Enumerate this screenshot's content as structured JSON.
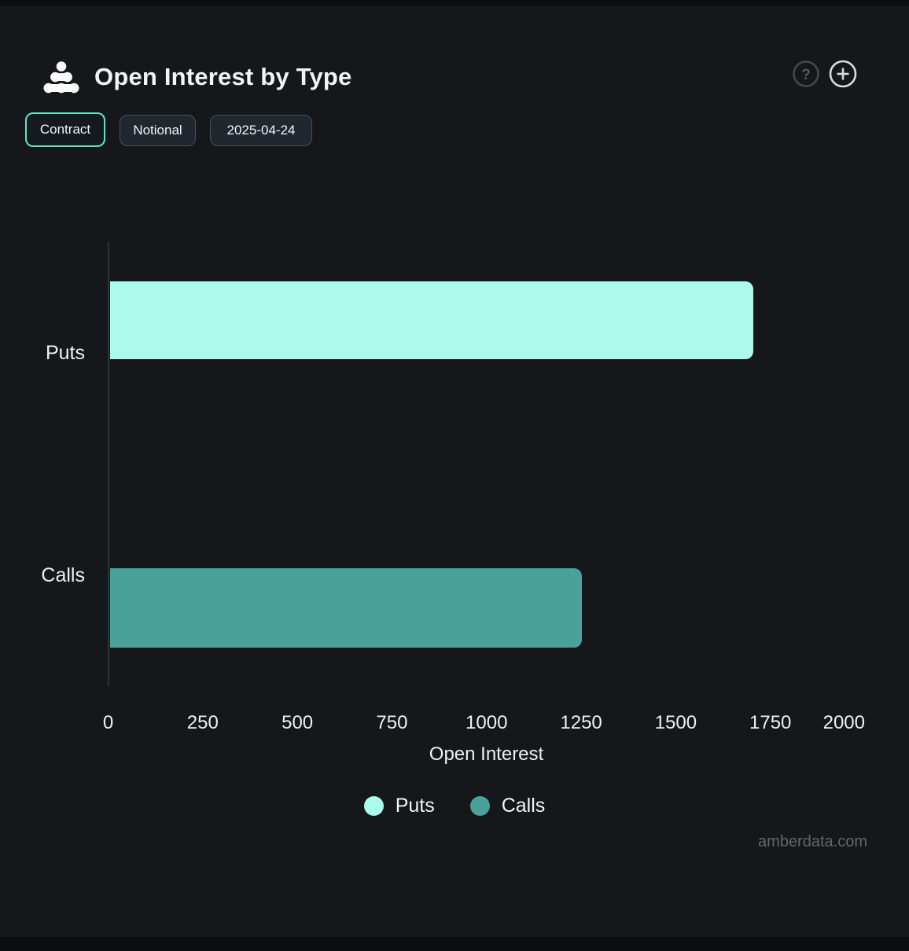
{
  "header": {
    "title": "Open Interest by Type",
    "logo": "amberdata-dots-logo",
    "actions": [
      {
        "name": "help",
        "icon": "question-circle-icon"
      },
      {
        "name": "add",
        "icon": "plus-circle-icon"
      }
    ]
  },
  "toolbar": {
    "buttons": [
      {
        "label": "Contract",
        "active": true
      },
      {
        "label": "Notional",
        "active": false
      },
      {
        "label": "2025-04-24",
        "active": false
      }
    ]
  },
  "chart_data": {
    "type": "bar",
    "orientation": "horizontal",
    "title": "Open Interest by Type",
    "categories": [
      "Puts",
      "Calls"
    ],
    "series": [
      {
        "name": "Puts",
        "value": 1705,
        "color": "#abfaec"
      },
      {
        "name": "Calls",
        "value": 1251,
        "color": "#49a299"
      }
    ],
    "xlabel": "Open Interest",
    "xlim": [
      0,
      2000
    ],
    "xticks": [
      0,
      250,
      500,
      750,
      1000,
      1250,
      1500,
      1750,
      2000
    ],
    "grid": false,
    "legend": {
      "position": "bottom",
      "entries": [
        "Puts",
        "Calls"
      ]
    }
  },
  "watermark": "amberdata.com",
  "colors": {
    "page_background": "#0c0d10",
    "panel_background": "#16171a",
    "accent": "#5ee7c4",
    "puts_bar": "#abfaec",
    "calls_bar": "#49a299",
    "axis_line": "#2f3237",
    "text": "#eef0f2",
    "muted_text": "#63676c"
  }
}
